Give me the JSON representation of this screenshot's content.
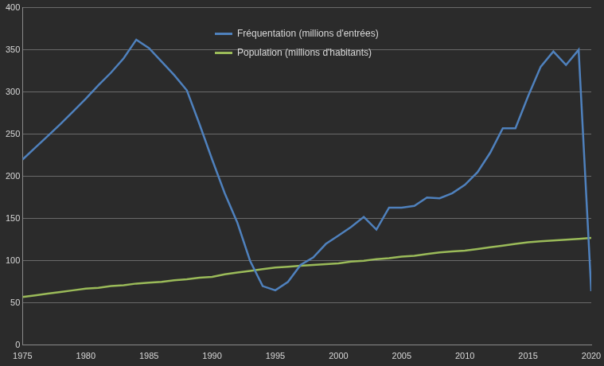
{
  "chart_data": {
    "type": "line",
    "x": [
      1975,
      1976,
      1977,
      1978,
      1979,
      1980,
      1981,
      1982,
      1983,
      1984,
      1985,
      1986,
      1987,
      1988,
      1989,
      1990,
      1991,
      1992,
      1993,
      1994,
      1995,
      1996,
      1997,
      1998,
      1999,
      2000,
      2001,
      2002,
      2003,
      2004,
      2005,
      2006,
      2007,
      2008,
      2009,
      2010,
      2011,
      2012,
      2013,
      2014,
      2015,
      2016,
      2017,
      2018,
      2019,
      2020
    ],
    "series": [
      {
        "name": "Fréquentation (millions d'entrées)",
        "color": "#4f81bd",
        "values": [
          220,
          234,
          248,
          262,
          277,
          292,
          308,
          323,
          340,
          362,
          352,
          336,
          320,
          302,
          262,
          220,
          180,
          145,
          100,
          70,
          65,
          75,
          95,
          104,
          120,
          130,
          140,
          152,
          137,
          163,
          163,
          165,
          175,
          174,
          180,
          190,
          205,
          228,
          257,
          257,
          295,
          330,
          348,
          332,
          350,
          64
        ]
      },
      {
        "name": "Population (millions d'habitants)",
        "color": "#9bbb59",
        "values": [
          57,
          59,
          61,
          63,
          65,
          67,
          68,
          70,
          71,
          73,
          74,
          75,
          77,
          78,
          80,
          81,
          84,
          86,
          88,
          90,
          92,
          93,
          94,
          95,
          96,
          97,
          99,
          100,
          102,
          103,
          105,
          106,
          108,
          110,
          111,
          112,
          114,
          116,
          118,
          120,
          122,
          123,
          124,
          125,
          126,
          127
        ]
      }
    ],
    "xlim": [
      1975,
      2020
    ],
    "xticks": [
      1975,
      1980,
      1985,
      1990,
      1995,
      2000,
      2005,
      2010,
      2015,
      2020
    ],
    "ylim": [
      0,
      400
    ],
    "yticks": [
      0,
      50,
      100,
      150,
      200,
      250,
      300,
      350,
      400
    ],
    "grid": true,
    "legend": "upper center"
  }
}
